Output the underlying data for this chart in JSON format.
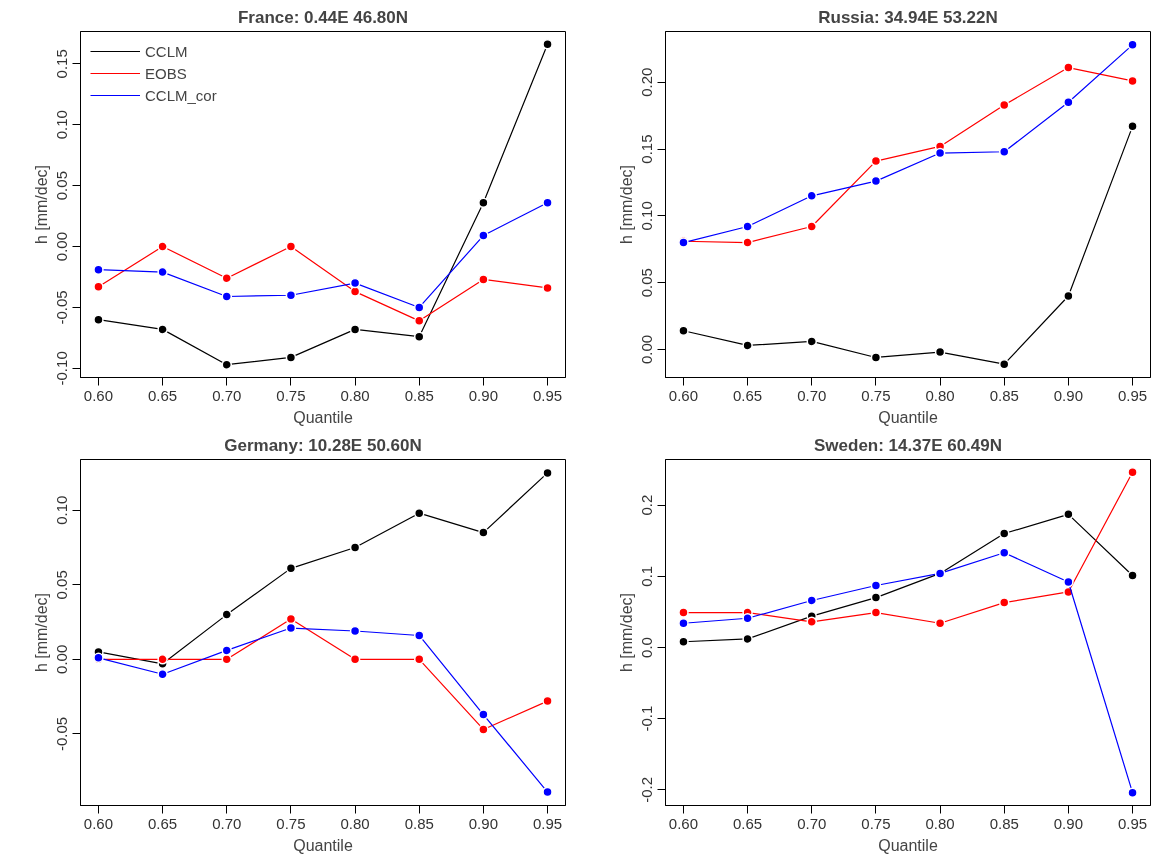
{
  "chart_data": [
    {
      "type": "line",
      "title": "France: 0.44E 46.80N",
      "xlabel": "Quantile",
      "ylabel": "h [mm/dec]",
      "x": [
        0.6,
        0.65,
        0.7,
        0.75,
        0.8,
        0.85,
        0.9,
        0.95
      ],
      "xlim": [
        0.586,
        0.964
      ],
      "ylim": [
        -0.1075,
        0.1765
      ],
      "xticks": [
        {
          "value": 0.6,
          "label": "0.60"
        },
        {
          "value": 0.65,
          "label": "0.65"
        },
        {
          "value": 0.7,
          "label": "0.70"
        },
        {
          "value": 0.75,
          "label": "0.75"
        },
        {
          "value": 0.8,
          "label": "0.80"
        },
        {
          "value": 0.85,
          "label": "0.85"
        },
        {
          "value": 0.9,
          "label": "0.90"
        },
        {
          "value": 0.95,
          "label": "0.95"
        }
      ],
      "yticks": [
        {
          "value": -0.1,
          "label": "-0.10"
        },
        {
          "value": -0.05,
          "label": "-0.05"
        },
        {
          "value": 0,
          "label": "0.00"
        },
        {
          "value": 0.05,
          "label": "0.05"
        },
        {
          "value": 0.1,
          "label": "0.10"
        },
        {
          "value": 0.15,
          "label": "0.15"
        }
      ],
      "grid": false,
      "marker": "circle",
      "line_style": "solid",
      "legend": "top left",
      "series": [
        {
          "name": "CCLM",
          "color": "#000000",
          "values": [
            -0.06,
            -0.068,
            -0.097,
            -0.091,
            -0.068,
            -0.074,
            0.036,
            0.166
          ]
        },
        {
          "name": "EOBS",
          "color": "#ff0000",
          "values": [
            -0.033,
            0.0,
            -0.026,
            0.0,
            -0.037,
            -0.061,
            -0.027,
            -0.034
          ]
        },
        {
          "name": "CCLM_cor",
          "color": "#0000ff",
          "values": [
            -0.019,
            -0.021,
            -0.041,
            -0.04,
            -0.03,
            -0.05,
            0.009,
            0.036
          ]
        }
      ]
    },
    {
      "type": "line",
      "title": "Russia: 34.94E 53.22N",
      "xlabel": "Quantile",
      "ylabel": "h [mm/dec]",
      "x": [
        0.6,
        0.65,
        0.7,
        0.75,
        0.8,
        0.85,
        0.9,
        0.95
      ],
      "xlim": [
        0.586,
        0.964
      ],
      "ylim": [
        -0.021,
        0.238
      ],
      "xticks": [
        {
          "value": 0.6,
          "label": "0.60"
        },
        {
          "value": 0.65,
          "label": "0.65"
        },
        {
          "value": 0.7,
          "label": "0.70"
        },
        {
          "value": 0.75,
          "label": "0.75"
        },
        {
          "value": 0.8,
          "label": "0.80"
        },
        {
          "value": 0.85,
          "label": "0.85"
        },
        {
          "value": 0.9,
          "label": "0.90"
        },
        {
          "value": 0.95,
          "label": "0.95"
        }
      ],
      "yticks": [
        {
          "value": 0,
          "label": "0.00"
        },
        {
          "value": 0.05,
          "label": "0.05"
        },
        {
          "value": 0.1,
          "label": "0.10"
        },
        {
          "value": 0.15,
          "label": "0.15"
        },
        {
          "value": 0.2,
          "label": "0.20"
        }
      ],
      "grid": false,
      "marker": "circle",
      "line_style": "solid",
      "series": [
        {
          "color": "#000000",
          "values": [
            0.014,
            0.003,
            0.006,
            -0.006,
            -0.002,
            -0.011,
            0.04,
            0.167
          ]
        },
        {
          "color": "#ff0000",
          "values": [
            0.081,
            0.08,
            0.092,
            0.141,
            0.152,
            0.183,
            0.211,
            0.201
          ]
        },
        {
          "color": "#0000ff",
          "values": [
            0.08,
            0.092,
            0.115,
            0.126,
            0.147,
            0.148,
            0.185,
            0.228
          ]
        }
      ]
    },
    {
      "type": "line",
      "title": "Germany: 10.28E 50.60N",
      "xlabel": "Quantile",
      "ylabel": "h [mm/dec]",
      "x": [
        0.6,
        0.65,
        0.7,
        0.75,
        0.8,
        0.85,
        0.9,
        0.95
      ],
      "xlim": [
        0.586,
        0.964
      ],
      "ylim": [
        -0.098,
        0.134
      ],
      "xticks": [
        {
          "value": 0.6,
          "label": "0.60"
        },
        {
          "value": 0.65,
          "label": "0.65"
        },
        {
          "value": 0.7,
          "label": "0.70"
        },
        {
          "value": 0.75,
          "label": "0.75"
        },
        {
          "value": 0.8,
          "label": "0.80"
        },
        {
          "value": 0.85,
          "label": "0.85"
        },
        {
          "value": 0.9,
          "label": "0.90"
        },
        {
          "value": 0.95,
          "label": "0.95"
        }
      ],
      "yticks": [
        {
          "value": -0.05,
          "label": "-0.05"
        },
        {
          "value": 0,
          "label": "0.00"
        },
        {
          "value": 0.05,
          "label": "0.05"
        },
        {
          "value": 0.1,
          "label": "0.10"
        }
      ],
      "grid": false,
      "marker": "circle",
      "line_style": "solid",
      "series": [
        {
          "color": "#000000",
          "values": [
            0.005,
            -0.003,
            0.03,
            0.061,
            0.075,
            0.098,
            0.085,
            0.125
          ]
        },
        {
          "color": "#ff0000",
          "values": [
            0.0,
            0.0,
            0.0,
            0.027,
            0.0,
            0.0,
            -0.047,
            -0.028
          ]
        },
        {
          "color": "#0000ff",
          "values": [
            0.001,
            -0.01,
            0.006,
            0.021,
            0.019,
            0.016,
            -0.037,
            -0.089
          ]
        }
      ]
    },
    {
      "type": "line",
      "title": "Sweden: 14.37E 60.49N",
      "xlabel": "Quantile",
      "ylabel": "h [mm/dec]",
      "x": [
        0.6,
        0.65,
        0.7,
        0.75,
        0.8,
        0.85,
        0.9,
        0.95
      ],
      "xlim": [
        0.586,
        0.964
      ],
      "ylim": [
        -0.222,
        0.264
      ],
      "xticks": [
        {
          "value": 0.6,
          "label": "0.60"
        },
        {
          "value": 0.65,
          "label": "0.65"
        },
        {
          "value": 0.7,
          "label": "0.70"
        },
        {
          "value": 0.75,
          "label": "0.75"
        },
        {
          "value": 0.8,
          "label": "0.80"
        },
        {
          "value": 0.85,
          "label": "0.85"
        },
        {
          "value": 0.9,
          "label": "0.90"
        },
        {
          "value": 0.95,
          "label": "0.95"
        }
      ],
      "yticks": [
        -0.2,
        -0.1,
        {
          "value": 0,
          "label": "0.0"
        },
        0.1,
        0.2
      ],
      "grid": false,
      "marker": "circle",
      "line_style": "solid",
      "series": [
        {
          "color": "#000000",
          "values": [
            0.008,
            0.012,
            0.044,
            0.07,
            0.104,
            0.16,
            0.187,
            0.101
          ]
        },
        {
          "color": "#ff0000",
          "values": [
            0.049,
            0.049,
            0.036,
            0.049,
            0.034,
            0.063,
            0.078,
            0.246
          ]
        },
        {
          "color": "#0000ff",
          "values": [
            0.034,
            0.041,
            0.066,
            0.087,
            0.104,
            0.133,
            0.092,
            -0.204
          ]
        }
      ]
    }
  ]
}
